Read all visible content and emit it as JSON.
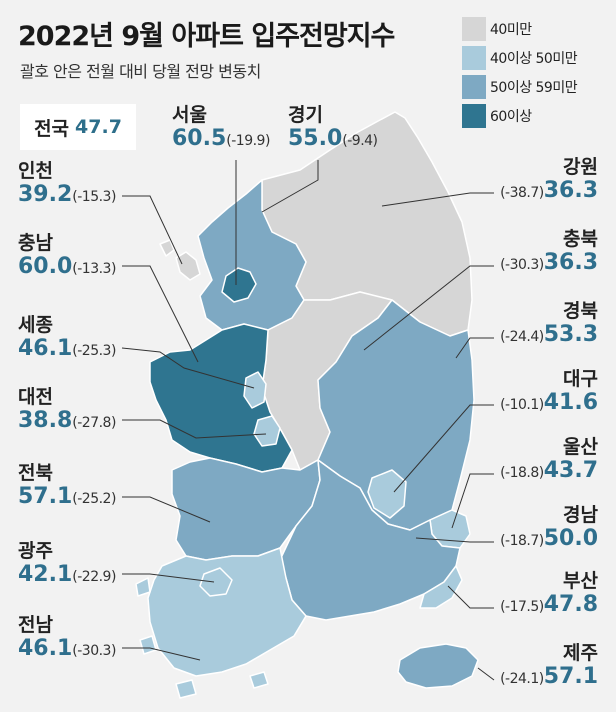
{
  "title": "2022년 9월 아파트 입주전망지수",
  "subtitle": "괄호 안은 전월 대비 당월 전망 변동치",
  "national": {
    "name": "전국",
    "value": "47.7"
  },
  "legend": [
    {
      "label": "40미만",
      "color": "#d6d6d6"
    },
    {
      "label": "40이상 50미만",
      "color": "#a9cbdc"
    },
    {
      "label": "50이상 59미만",
      "color": "#7ea9c3"
    },
    {
      "label": "60이상",
      "color": "#2f7590"
    }
  ],
  "regions": {
    "seoul": {
      "name": "서울",
      "value": "60.5",
      "change": "(-19.9)"
    },
    "gyeonggi": {
      "name": "경기",
      "value": "55.0",
      "change": "(-9.4)"
    },
    "incheon": {
      "name": "인천",
      "value": "39.2",
      "change": "(-15.3)"
    },
    "chungnam": {
      "name": "충남",
      "value": "60.0",
      "change": "(-13.3)"
    },
    "sejong": {
      "name": "세종",
      "value": "46.1",
      "change": "(-25.3)"
    },
    "daejeon": {
      "name": "대전",
      "value": "38.8",
      "change": "(-27.8)"
    },
    "jeonbuk": {
      "name": "전북",
      "value": "57.1",
      "change": "(-25.2)"
    },
    "gwangju": {
      "name": "광주",
      "value": "42.1",
      "change": "(-22.9)"
    },
    "jeonnam": {
      "name": "전남",
      "value": "46.1",
      "change": "(-30.3)"
    },
    "gangwon": {
      "name": "강원",
      "value": "36.3",
      "change": "(-38.7)"
    },
    "chungbuk": {
      "name": "충북",
      "value": "36.3",
      "change": "(-30.3)"
    },
    "gyeongbuk": {
      "name": "경북",
      "value": "53.3",
      "change": "(-24.4)"
    },
    "daegu": {
      "name": "대구",
      "value": "41.6",
      "change": "(-10.1)"
    },
    "ulsan": {
      "name": "울산",
      "value": "43.7",
      "change": "(-18.8)"
    },
    "gyeongnam": {
      "name": "경남",
      "value": "50.0",
      "change": "(-18.7)"
    },
    "busan": {
      "name": "부산",
      "value": "47.8",
      "change": "(-17.5)"
    },
    "jeju": {
      "name": "제주",
      "value": "57.1",
      "change": "(-24.1)"
    }
  }
}
